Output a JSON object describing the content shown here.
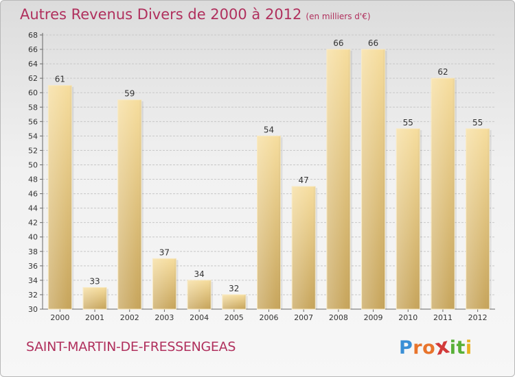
{
  "header": {
    "title": "Autres Revenus Divers de 2000 à 2012",
    "subtitle": "(en milliers d'€)"
  },
  "footer": {
    "commune": "SAINT-MARTIN-DE-FRESSENGEAS",
    "logo_letters": [
      "P",
      "r",
      "o",
      "x",
      "i",
      "t",
      "i"
    ],
    "logo_colors": [
      "#3a8fd6",
      "#e8742c",
      "#e8742c",
      "#d23a3a",
      "#58b038",
      "#58b038",
      "#e8b020"
    ]
  },
  "colors": {
    "accent": "#b0305d",
    "bar_light": "#f5dc9c",
    "bar_dark": "#c9a75e"
  },
  "chart_data": {
    "type": "bar",
    "title": "Autres Revenus Divers de 2000 à 2012",
    "subtitle": "(en milliers d'€)",
    "xlabel": "",
    "ylabel": "",
    "categories": [
      "2000",
      "2001",
      "2002",
      "2003",
      "2004",
      "2005",
      "2006",
      "2007",
      "2008",
      "2009",
      "2010",
      "2011",
      "2012"
    ],
    "values": [
      61,
      33,
      59,
      37,
      34,
      32,
      54,
      47,
      66,
      66,
      55,
      62,
      55
    ],
    "ylim": [
      30,
      68
    ],
    "yticks": [
      30,
      32,
      34,
      36,
      38,
      40,
      42,
      44,
      46,
      48,
      50,
      52,
      54,
      56,
      58,
      60,
      62,
      64,
      66,
      68
    ],
    "grid": true
  }
}
